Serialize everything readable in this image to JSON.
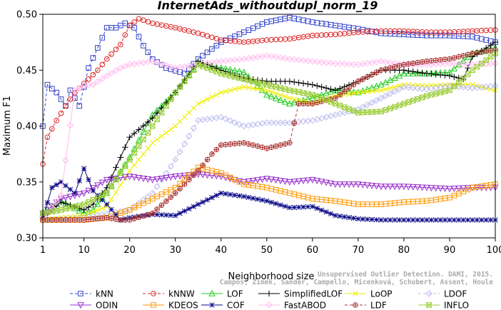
{
  "chart_data": {
    "type": "line",
    "title": "InternetAds_withoutdupl_norm_19",
    "xlabel": "Neighborhood size",
    "ylabel": "Maximum F1",
    "xlim": [
      1,
      100
    ],
    "ylim": [
      0.3,
      0.5
    ],
    "xticks": [
      1,
      10,
      20,
      30,
      40,
      50,
      60,
      70,
      80,
      90,
      100
    ],
    "yticks": [
      0.3,
      0.35,
      0.4,
      0.45,
      0.5
    ],
    "ytick_labels": [
      "0.30",
      "0.35",
      "0.40",
      "0.45",
      "0.50"
    ],
    "grid": false,
    "legend_position": "bottom",
    "watermark": [
      "Unsupervised Outlier Detection. DAMI, 2015.",
      "Campos, Zimek, Sander, Campello, Micenková, Schubert, Assent, Houle"
    ],
    "series": [
      {
        "name": "kNN",
        "color": "#3344cc",
        "marker": "square",
        "dash": "4,3",
        "points": [
          [
            1,
            0.4
          ],
          [
            2,
            0.437
          ],
          [
            4,
            0.43
          ],
          [
            6,
            0.418
          ],
          [
            7,
            0.432
          ],
          [
            9,
            0.418
          ],
          [
            11,
            0.452
          ],
          [
            13,
            0.47
          ],
          [
            15,
            0.488
          ],
          [
            17,
            0.488
          ],
          [
            19,
            0.492
          ],
          [
            21,
            0.488
          ],
          [
            23,
            0.472
          ],
          [
            25,
            0.46
          ],
          [
            28,
            0.452
          ],
          [
            32,
            0.447
          ],
          [
            35,
            0.46
          ],
          [
            40,
            0.475
          ],
          [
            45,
            0.484
          ],
          [
            50,
            0.493
          ],
          [
            55,
            0.497
          ],
          [
            60,
            0.493
          ],
          [
            65,
            0.49
          ],
          [
            70,
            0.487
          ],
          [
            75,
            0.483
          ],
          [
            80,
            0.482
          ],
          [
            85,
            0.481
          ],
          [
            90,
            0.481
          ],
          [
            95,
            0.48
          ],
          [
            100,
            0.475
          ]
        ]
      },
      {
        "name": "kNNW",
        "color": "#dd2222",
        "marker": "circle",
        "dash": "4,3",
        "points": [
          [
            1,
            0.366
          ],
          [
            2,
            0.39
          ],
          [
            4,
            0.405
          ],
          [
            6,
            0.418
          ],
          [
            8,
            0.43
          ],
          [
            10,
            0.438
          ],
          [
            13,
            0.45
          ],
          [
            15,
            0.46
          ],
          [
            18,
            0.473
          ],
          [
            20,
            0.49
          ],
          [
            22,
            0.496
          ],
          [
            25,
            0.492
          ],
          [
            30,
            0.488
          ],
          [
            35,
            0.483
          ],
          [
            40,
            0.477
          ],
          [
            45,
            0.475
          ],
          [
            50,
            0.477
          ],
          [
            55,
            0.478
          ],
          [
            60,
            0.481
          ],
          [
            65,
            0.482
          ],
          [
            70,
            0.484
          ],
          [
            75,
            0.485
          ],
          [
            80,
            0.485
          ],
          [
            85,
            0.484
          ],
          [
            90,
            0.484
          ],
          [
            95,
            0.485
          ],
          [
            100,
            0.486
          ]
        ]
      },
      {
        "name": "LOF",
        "color": "#22cc22",
        "marker": "triangle-up",
        "dash": "",
        "points": [
          [
            1,
            0.323
          ],
          [
            5,
            0.333
          ],
          [
            10,
            0.322
          ],
          [
            12,
            0.325
          ],
          [
            15,
            0.34
          ],
          [
            20,
            0.372
          ],
          [
            25,
            0.41
          ],
          [
            30,
            0.43
          ],
          [
            35,
            0.456
          ],
          [
            40,
            0.452
          ],
          [
            45,
            0.448
          ],
          [
            50,
            0.428
          ],
          [
            55,
            0.42
          ],
          [
            60,
            0.425
          ],
          [
            65,
            0.432
          ],
          [
            70,
            0.43
          ],
          [
            75,
            0.437
          ],
          [
            80,
            0.447
          ],
          [
            85,
            0.447
          ],
          [
            90,
            0.448
          ],
          [
            95,
            0.465
          ],
          [
            100,
            0.47
          ]
        ]
      },
      {
        "name": "SimplifiedLOF",
        "color": "#000000",
        "marker": "plus",
        "dash": "",
        "points": [
          [
            1,
            0.318
          ],
          [
            5,
            0.332
          ],
          [
            10,
            0.325
          ],
          [
            12,
            0.33
          ],
          [
            15,
            0.345
          ],
          [
            20,
            0.39
          ],
          [
            25,
            0.407
          ],
          [
            30,
            0.43
          ],
          [
            35,
            0.458
          ],
          [
            40,
            0.45
          ],
          [
            45,
            0.443
          ],
          [
            50,
            0.44
          ],
          [
            55,
            0.44
          ],
          [
            60,
            0.437
          ],
          [
            65,
            0.432
          ],
          [
            70,
            0.44
          ],
          [
            75,
            0.45
          ],
          [
            80,
            0.45
          ],
          [
            85,
            0.447
          ],
          [
            90,
            0.445
          ],
          [
            93,
            0.442
          ],
          [
            95,
            0.462
          ],
          [
            100,
            0.475
          ]
        ]
      },
      {
        "name": "LoOP",
        "color": "#eeee00",
        "marker": "x",
        "dash": "",
        "points": [
          [
            1,
            0.316
          ],
          [
            5,
            0.318
          ],
          [
            10,
            0.32
          ],
          [
            15,
            0.328
          ],
          [
            20,
            0.36
          ],
          [
            25,
            0.385
          ],
          [
            30,
            0.4
          ],
          [
            35,
            0.42
          ],
          [
            40,
            0.43
          ],
          [
            45,
            0.435
          ],
          [
            50,
            0.432
          ],
          [
            55,
            0.425
          ],
          [
            60,
            0.42
          ],
          [
            65,
            0.427
          ],
          [
            70,
            0.43
          ],
          [
            75,
            0.432
          ],
          [
            80,
            0.437
          ],
          [
            85,
            0.436
          ],
          [
            90,
            0.437
          ],
          [
            95,
            0.437
          ],
          [
            100,
            0.432
          ]
        ]
      },
      {
        "name": "LDOF",
        "color": "#bbbbee",
        "marker": "diamond",
        "dash": "4,3",
        "points": [
          [
            1,
            0.316
          ],
          [
            10,
            0.318
          ],
          [
            20,
            0.325
          ],
          [
            25,
            0.34
          ],
          [
            30,
            0.37
          ],
          [
            35,
            0.405
          ],
          [
            40,
            0.408
          ],
          [
            45,
            0.4
          ],
          [
            50,
            0.403
          ],
          [
            55,
            0.403
          ],
          [
            60,
            0.405
          ],
          [
            65,
            0.41
          ],
          [
            70,
            0.415
          ],
          [
            75,
            0.425
          ],
          [
            80,
            0.435
          ],
          [
            85,
            0.433
          ],
          [
            90,
            0.436
          ],
          [
            95,
            0.434
          ],
          [
            100,
            0.436
          ]
        ]
      },
      {
        "name": "ODIN",
        "color": "#9933cc",
        "marker": "triangle-down",
        "dash": "",
        "points": [
          [
            1,
            0.322
          ],
          [
            5,
            0.335
          ],
          [
            10,
            0.34
          ],
          [
            15,
            0.352
          ],
          [
            20,
            0.355
          ],
          [
            25,
            0.352
          ],
          [
            30,
            0.355
          ],
          [
            35,
            0.357
          ],
          [
            40,
            0.355
          ],
          [
            45,
            0.35
          ],
          [
            50,
            0.353
          ],
          [
            55,
            0.35
          ],
          [
            60,
            0.352
          ],
          [
            65,
            0.348
          ],
          [
            70,
            0.348
          ],
          [
            75,
            0.346
          ],
          [
            80,
            0.346
          ],
          [
            85,
            0.345
          ],
          [
            90,
            0.344
          ],
          [
            95,
            0.345
          ],
          [
            100,
            0.345
          ]
        ]
      },
      {
        "name": "KDEOS",
        "color": "#ff9900",
        "marker": "square",
        "dash": "",
        "points": [
          [
            1,
            0.316
          ],
          [
            10,
            0.316
          ],
          [
            15,
            0.318
          ],
          [
            20,
            0.325
          ],
          [
            25,
            0.335
          ],
          [
            30,
            0.345
          ],
          [
            35,
            0.363
          ],
          [
            40,
            0.358
          ],
          [
            45,
            0.348
          ],
          [
            50,
            0.345
          ],
          [
            55,
            0.34
          ],
          [
            60,
            0.335
          ],
          [
            65,
            0.333
          ],
          [
            70,
            0.33
          ],
          [
            75,
            0.33
          ],
          [
            80,
            0.332
          ],
          [
            85,
            0.333
          ],
          [
            90,
            0.336
          ],
          [
            95,
            0.345
          ],
          [
            100,
            0.348
          ]
        ]
      },
      {
        "name": "COF",
        "color": "#0a0a88",
        "marker": "star",
        "dash": "",
        "points": [
          [
            1,
            0.318
          ],
          [
            3,
            0.345
          ],
          [
            5,
            0.35
          ],
          [
            8,
            0.34
          ],
          [
            10,
            0.362
          ],
          [
            12,
            0.342
          ],
          [
            15,
            0.33
          ],
          [
            18,
            0.316
          ],
          [
            20,
            0.318
          ],
          [
            25,
            0.321
          ],
          [
            30,
            0.32
          ],
          [
            35,
            0.33
          ],
          [
            40,
            0.34
          ],
          [
            45,
            0.337
          ],
          [
            50,
            0.333
          ],
          [
            55,
            0.327
          ],
          [
            60,
            0.328
          ],
          [
            65,
            0.32
          ],
          [
            70,
            0.317
          ],
          [
            75,
            0.316
          ],
          [
            80,
            0.316
          ],
          [
            85,
            0.316
          ],
          [
            90,
            0.316
          ],
          [
            95,
            0.316
          ],
          [
            100,
            0.316
          ]
        ]
      },
      {
        "name": "FastABOD",
        "color": "#ffbbee",
        "marker": "diamond",
        "dash": "",
        "points": [
          [
            1,
            0.316
          ],
          [
            5,
            0.338
          ],
          [
            8,
            0.432
          ],
          [
            10,
            0.436
          ],
          [
            12,
            0.437
          ],
          [
            15,
            0.445
          ],
          [
            18,
            0.452
          ],
          [
            20,
            0.455
          ],
          [
            25,
            0.458
          ],
          [
            30,
            0.452
          ],
          [
            35,
            0.455
          ],
          [
            40,
            0.458
          ],
          [
            45,
            0.46
          ],
          [
            50,
            0.463
          ],
          [
            55,
            0.46
          ],
          [
            60,
            0.458
          ],
          [
            65,
            0.456
          ],
          [
            70,
            0.455
          ],
          [
            75,
            0.458
          ],
          [
            80,
            0.455
          ],
          [
            85,
            0.455
          ],
          [
            90,
            0.456
          ],
          [
            95,
            0.455
          ],
          [
            100,
            0.456
          ]
        ]
      },
      {
        "name": "LDF",
        "color": "#aa3333",
        "marker": "circle-plus",
        "dash": "4,3",
        "points": [
          [
            1,
            0.316
          ],
          [
            10,
            0.316
          ],
          [
            15,
            0.318
          ],
          [
            18,
            0.316
          ],
          [
            20,
            0.316
          ],
          [
            25,
            0.322
          ],
          [
            30,
            0.34
          ],
          [
            35,
            0.36
          ],
          [
            38,
            0.375
          ],
          [
            40,
            0.383
          ],
          [
            45,
            0.385
          ],
          [
            50,
            0.38
          ],
          [
            55,
            0.385
          ],
          [
            57,
            0.42
          ],
          [
            60,
            0.42
          ],
          [
            65,
            0.425
          ],
          [
            70,
            0.44
          ],
          [
            75,
            0.45
          ],
          [
            80,
            0.455
          ],
          [
            85,
            0.458
          ],
          [
            90,
            0.46
          ],
          [
            95,
            0.465
          ],
          [
            100,
            0.468
          ]
        ]
      },
      {
        "name": "INFLO",
        "color": "#99cc33",
        "marker": "hourglass",
        "dash": "",
        "points": [
          [
            1,
            0.322
          ],
          [
            5,
            0.325
          ],
          [
            10,
            0.33
          ],
          [
            15,
            0.34
          ],
          [
            20,
            0.37
          ],
          [
            25,
            0.4
          ],
          [
            30,
            0.43
          ],
          [
            35,
            0.455
          ],
          [
            40,
            0.447
          ],
          [
            45,
            0.442
          ],
          [
            50,
            0.437
          ],
          [
            55,
            0.432
          ],
          [
            60,
            0.428
          ],
          [
            65,
            0.42
          ],
          [
            70,
            0.412
          ],
          [
            75,
            0.413
          ],
          [
            80,
            0.42
          ],
          [
            85,
            0.427
          ],
          [
            90,
            0.432
          ],
          [
            95,
            0.45
          ],
          [
            100,
            0.465
          ]
        ]
      }
    ]
  }
}
